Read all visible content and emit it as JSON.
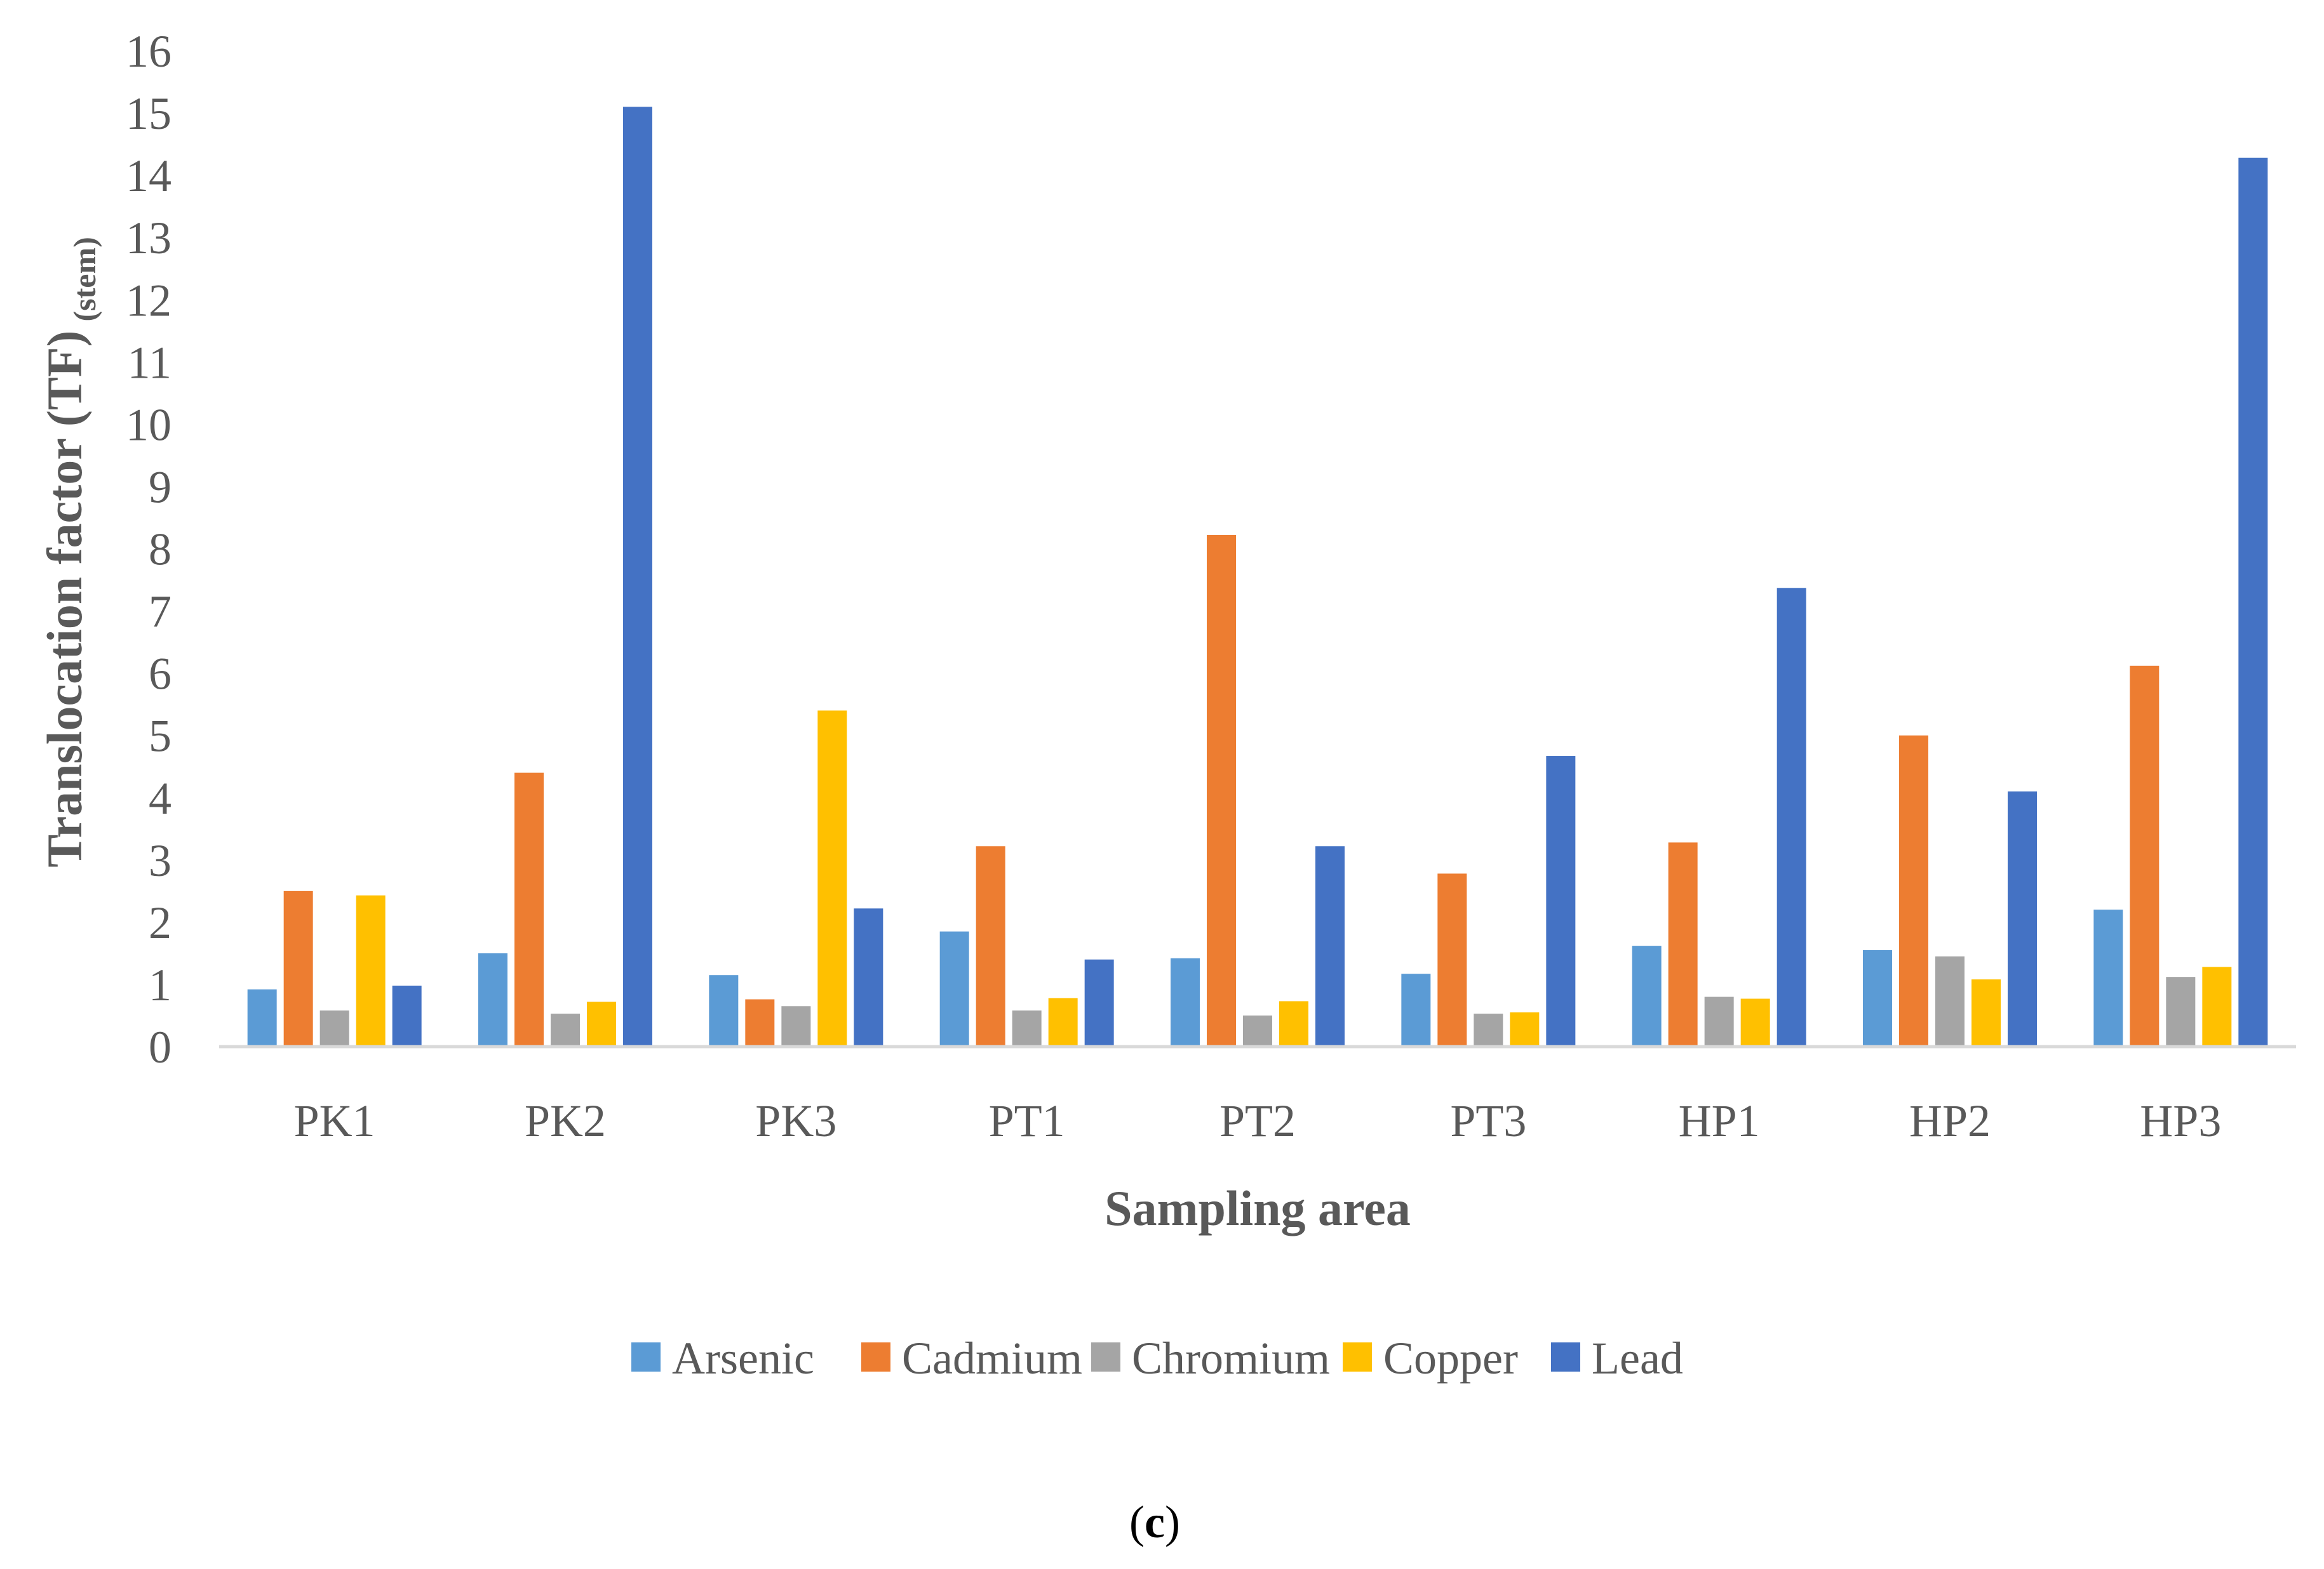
{
  "chart_data": {
    "type": "bar",
    "title": "",
    "xlabel": "Sampling area",
    "ylabel_main": "Translocation factor (TF)",
    "ylabel_sub": "(stem)",
    "ylim": [
      0,
      16
    ],
    "yticks": [
      0,
      1,
      2,
      3,
      4,
      5,
      6,
      7,
      8,
      9,
      10,
      11,
      12,
      13,
      14,
      15,
      16
    ],
    "grid": false,
    "legend_position": "bottom",
    "categories": [
      "PK1",
      "PK2",
      "PK3",
      "PT1",
      "PT2",
      "PT3",
      "HP1",
      "HP2",
      "HP3"
    ],
    "series": [
      {
        "name": "Arsenic",
        "color": "#5b9bd5",
        "values": [
          0.92,
          1.5,
          1.15,
          1.85,
          1.42,
          1.17,
          1.62,
          1.55,
          2.2
        ]
      },
      {
        "name": "Cadmium",
        "color": "#ed7d31",
        "values": [
          2.5,
          4.4,
          0.76,
          3.22,
          8.22,
          2.78,
          3.28,
          5.0,
          6.12
        ]
      },
      {
        "name": "Chromium",
        "color": "#a5a5a5",
        "values": [
          0.58,
          0.53,
          0.65,
          0.58,
          0.5,
          0.53,
          0.8,
          1.45,
          1.12
        ]
      },
      {
        "name": "Copper",
        "color": "#ffc000",
        "values": [
          2.43,
          0.72,
          5.4,
          0.78,
          0.73,
          0.55,
          0.77,
          1.08,
          1.28
        ]
      },
      {
        "name": "Lead",
        "color": "#4472c4",
        "values": [
          0.98,
          15.1,
          2.22,
          1.4,
          3.22,
          4.67,
          7.37,
          4.1,
          14.28
        ]
      }
    ]
  },
  "caption": {
    "open": "(",
    "letter": "c",
    "close": ")"
  }
}
